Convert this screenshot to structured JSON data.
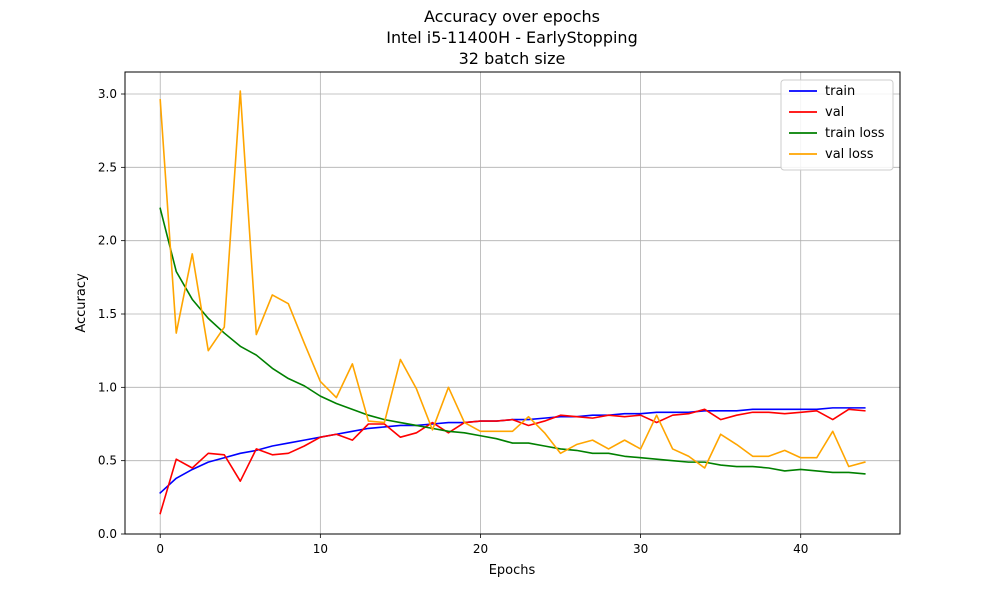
{
  "chart_data": {
    "type": "line",
    "title": [
      "Accuracy over epochs",
      "Intel i5-11400H - EarlyStopping",
      "32 batch size"
    ],
    "xlabel": "Epochs",
    "ylabel": "Accuracy",
    "xlim": [
      -2.2,
      46.2
    ],
    "ylim": [
      0.0,
      3.15
    ],
    "xticks": [
      0,
      10,
      20,
      30,
      40
    ],
    "yticks": [
      0.0,
      0.5,
      1.0,
      1.5,
      2.0,
      2.5,
      3.0
    ],
    "xtick_labels": [
      "0",
      "10",
      "20",
      "30",
      "40"
    ],
    "ytick_labels": [
      "0.0",
      "0.5",
      "1.0",
      "1.5",
      "2.0",
      "2.5",
      "3.0"
    ],
    "grid": true,
    "legend_position": "top-right",
    "x": [
      0,
      1,
      2,
      3,
      4,
      5,
      6,
      7,
      8,
      9,
      10,
      11,
      12,
      13,
      14,
      15,
      16,
      17,
      18,
      19,
      20,
      21,
      22,
      23,
      24,
      25,
      26,
      27,
      28,
      29,
      30,
      31,
      32,
      33,
      34,
      35,
      36,
      37,
      38,
      39,
      40,
      41,
      42,
      43,
      44
    ],
    "series": [
      {
        "name": "train",
        "color": "#0000ff",
        "values": [
          0.28,
          0.38,
          0.44,
          0.49,
          0.52,
          0.55,
          0.57,
          0.6,
          0.62,
          0.64,
          0.66,
          0.68,
          0.7,
          0.72,
          0.73,
          0.74,
          0.74,
          0.75,
          0.76,
          0.76,
          0.77,
          0.77,
          0.78,
          0.78,
          0.79,
          0.8,
          0.8,
          0.81,
          0.81,
          0.82,
          0.82,
          0.83,
          0.83,
          0.83,
          0.84,
          0.84,
          0.84,
          0.85,
          0.85,
          0.85,
          0.85,
          0.85,
          0.86,
          0.86,
          0.86
        ]
      },
      {
        "name": "val",
        "color": "#ff0000",
        "values": [
          0.14,
          0.51,
          0.45,
          0.55,
          0.54,
          0.36,
          0.58,
          0.54,
          0.55,
          0.6,
          0.66,
          0.68,
          0.64,
          0.75,
          0.75,
          0.66,
          0.69,
          0.76,
          0.69,
          0.76,
          0.77,
          0.77,
          0.78,
          0.74,
          0.77,
          0.81,
          0.8,
          0.79,
          0.81,
          0.8,
          0.81,
          0.76,
          0.81,
          0.82,
          0.85,
          0.78,
          0.81,
          0.83,
          0.83,
          0.82,
          0.83,
          0.84,
          0.78,
          0.85,
          0.84
        ]
      },
      {
        "name": "train loss",
        "color": "#008000",
        "values": [
          2.22,
          1.79,
          1.6,
          1.47,
          1.37,
          1.28,
          1.22,
          1.13,
          1.06,
          1.01,
          0.94,
          0.89,
          0.85,
          0.81,
          0.78,
          0.76,
          0.74,
          0.72,
          0.7,
          0.69,
          0.67,
          0.65,
          0.62,
          0.62,
          0.6,
          0.58,
          0.57,
          0.55,
          0.55,
          0.53,
          0.52,
          0.51,
          0.5,
          0.49,
          0.49,
          0.47,
          0.46,
          0.46,
          0.45,
          0.43,
          0.44,
          0.43,
          0.42,
          0.42,
          0.41
        ]
      },
      {
        "name": "val loss",
        "color": "#ffa500",
        "values": [
          2.96,
          1.37,
          1.91,
          1.25,
          1.41,
          3.02,
          1.36,
          1.63,
          1.57,
          1.3,
          1.04,
          0.93,
          1.16,
          0.77,
          0.76,
          1.19,
          0.99,
          0.71,
          1.0,
          0.76,
          0.7,
          0.7,
          0.7,
          0.8,
          0.69,
          0.55,
          0.61,
          0.64,
          0.58,
          0.64,
          0.58,
          0.81,
          0.58,
          0.53,
          0.45,
          0.68,
          0.61,
          0.53,
          0.53,
          0.57,
          0.52,
          0.52,
          0.7,
          0.46,
          0.49
        ]
      }
    ]
  }
}
